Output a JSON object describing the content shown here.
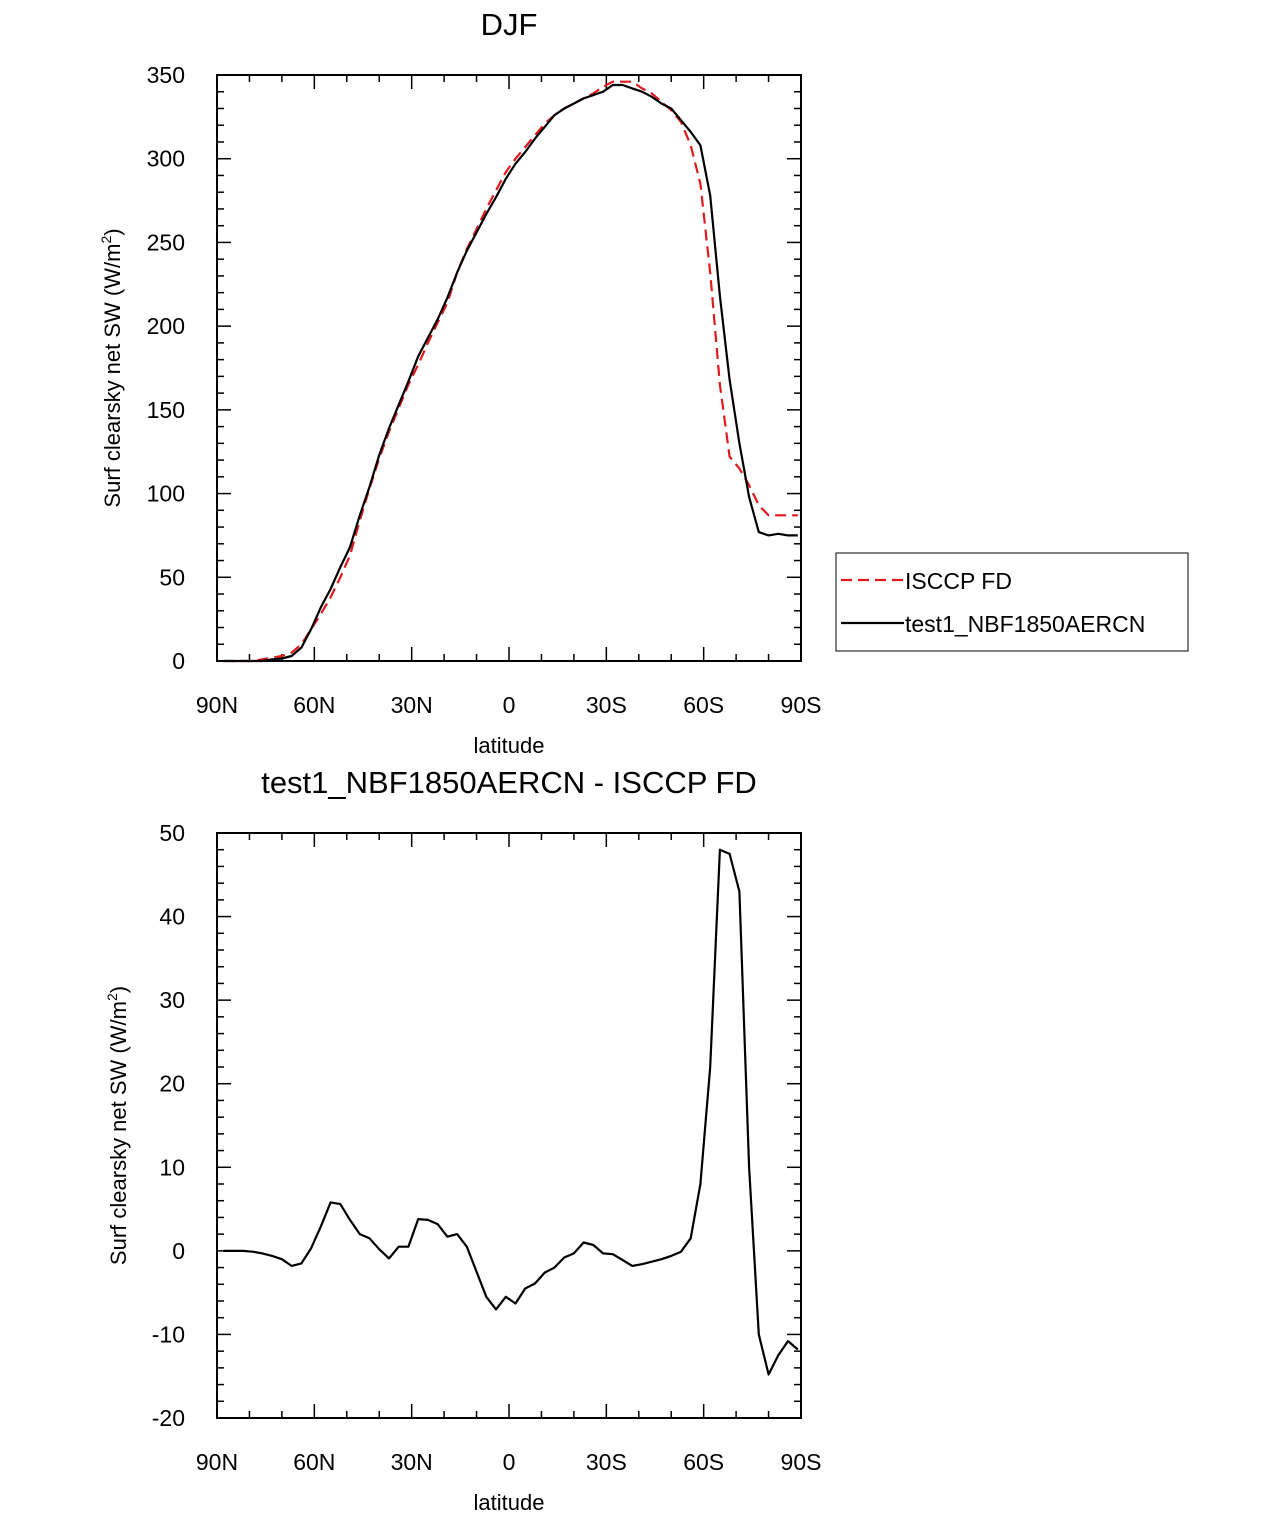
{
  "chart_data": [
    {
      "type": "line",
      "title": "DJF",
      "xlabel": "latitude",
      "ylabel": "Surf clearsky net SW (W/m",
      "ylabel_sup": "2",
      "ylabel_close": ")",
      "xlim": [
        -90,
        90
      ],
      "ylim": [
        0,
        350
      ],
      "xticks": [
        -90,
        -60,
        -30,
        0,
        30,
        60,
        90
      ],
      "xtick_labels": [
        "90N",
        "60N",
        "30N",
        "0",
        "30S",
        "60S",
        "90S"
      ],
      "yticks": [
        0,
        50,
        100,
        150,
        200,
        250,
        300,
        350
      ],
      "ytick_labels": [
        "0",
        "50",
        "100",
        "150",
        "200",
        "250",
        "300",
        "350"
      ],
      "legend": {
        "position": "right",
        "entries": [
          "ISCCP FD",
          "test1_NBF1850AERCN"
        ]
      },
      "series": [
        {
          "name": "ISCCP FD",
          "color": "#e0191c",
          "dash": "dashed",
          "x": [
            -88,
            -85,
            -82,
            -79,
            -76,
            -73,
            -70,
            -67,
            -64,
            -61,
            -58,
            -55,
            -52,
            -49,
            -46,
            -43,
            -40,
            -37,
            -34,
            -31,
            -28,
            -25,
            -22,
            -19,
            -16,
            -13,
            -10,
            -7,
            -4,
            -1,
            2,
            5,
            8,
            11,
            14,
            17,
            20,
            23,
            26,
            29,
            32,
            35,
            38,
            41,
            44,
            47,
            50,
            53,
            56,
            59,
            62,
            65,
            68,
            71,
            74,
            77,
            80,
            83,
            86,
            89
          ],
          "y": [
            0,
            0,
            0,
            0,
            1,
            2,
            3,
            5,
            10,
            19,
            28,
            38,
            50,
            63,
            84,
            103,
            121,
            137,
            151,
            165,
            177,
            190,
            202,
            214,
            232,
            246,
            258,
            270,
            281,
            292,
            300,
            307,
            314,
            321,
            326,
            330,
            333,
            336,
            339,
            343,
            346,
            346,
            346,
            342,
            339,
            334,
            329,
            322,
            308,
            285,
            232,
            165,
            122,
            115,
            105,
            93,
            87,
            87,
            87,
            87
          ]
        },
        {
          "name": "test1_NBF1850AERCN",
          "color": "#000000",
          "dash": "solid",
          "x": [
            -88,
            -85,
            -82,
            -79,
            -76,
            -73,
            -70,
            -67,
            -64,
            -61,
            -58,
            -55,
            -52,
            -49,
            -46,
            -43,
            -40,
            -37,
            -34,
            -31,
            -28,
            -25,
            -22,
            -19,
            -16,
            -13,
            -10,
            -7,
            -4,
            -1,
            2,
            5,
            8,
            11,
            14,
            17,
            20,
            23,
            26,
            29,
            32,
            35,
            38,
            41,
            44,
            47,
            50,
            53,
            56,
            59,
            62,
            65,
            68,
            71,
            74,
            77,
            80,
            83,
            86,
            89
          ],
          "y": [
            0,
            0,
            0,
            0,
            0,
            1,
            1.5,
            3,
            8,
            19,
            32,
            43,
            56,
            68,
            87,
            104,
            123,
            139,
            153,
            167,
            182,
            193,
            204,
            217,
            232,
            245,
            256,
            267,
            277,
            288,
            297,
            304,
            312,
            319,
            326,
            330,
            333,
            336,
            338,
            340,
            344,
            344,
            342,
            340,
            337,
            333,
            330,
            323,
            316,
            308,
            278,
            218,
            168,
            130,
            98,
            77,
            75,
            76,
            75,
            75
          ]
        }
      ]
    },
    {
      "type": "line",
      "title": "test1_NBF1850AERCN - ISCCP FD",
      "xlabel": "latitude",
      "ylabel": "Surf clearsky net SW (W/m",
      "ylabel_sup": "2",
      "ylabel_close": ")",
      "xlim": [
        -90,
        90
      ],
      "ylim": [
        -20,
        50
      ],
      "xticks": [
        -90,
        -60,
        -30,
        0,
        30,
        60,
        90
      ],
      "xtick_labels": [
        "90N",
        "60N",
        "30N",
        "0",
        "30S",
        "60S",
        "90S"
      ],
      "yticks": [
        -20,
        -10,
        0,
        10,
        20,
        30,
        40,
        50
      ],
      "ytick_labels": [
        "-20",
        "-10",
        "0",
        "10",
        "20",
        "30",
        "40",
        "50"
      ],
      "series": [
        {
          "name": "test1_NBF1850AERCN - ISCCP FD",
          "color": "#000000",
          "dash": "solid",
          "x": [
            -88,
            -85,
            -82,
            -79,
            -76,
            -73,
            -70,
            -67,
            -64,
            -61,
            -58,
            -55,
            -52,
            -49,
            -46,
            -43,
            -40,
            -37,
            -34,
            -31,
            -28,
            -25,
            -22,
            -19,
            -16,
            -13,
            -10,
            -7,
            -4,
            -1,
            2,
            5,
            8,
            11,
            14,
            17,
            20,
            23,
            26,
            29,
            32,
            35,
            38,
            41,
            44,
            47,
            50,
            53,
            56,
            59,
            62,
            65,
            68,
            71,
            74,
            77,
            80,
            83,
            86,
            89
          ],
          "y": [
            0,
            0,
            0,
            -0.1,
            -0.3,
            -0.6,
            -1,
            -1.8,
            -1.5,
            0.3,
            2.9,
            5.8,
            5.6,
            3.7,
            2,
            1.5,
            0.2,
            -0.9,
            0.5,
            0.5,
            3.8,
            3.7,
            3.2,
            1.7,
            2,
            0.5,
            -2.5,
            -5.5,
            -7,
            -5.5,
            -6.3,
            -4.5,
            -3.9,
            -2.6,
            -2,
            -0.8,
            -0.3,
            1,
            0.7,
            -0.3,
            -0.4,
            -1.1,
            -1.8,
            -1.6,
            -1.3,
            -1,
            -0.6,
            -0.1,
            1.5,
            8,
            22,
            48,
            47.5,
            43,
            10,
            -10,
            -14.8,
            -12.5,
            -10.8,
            -11.8
          ]
        }
      ]
    }
  ]
}
